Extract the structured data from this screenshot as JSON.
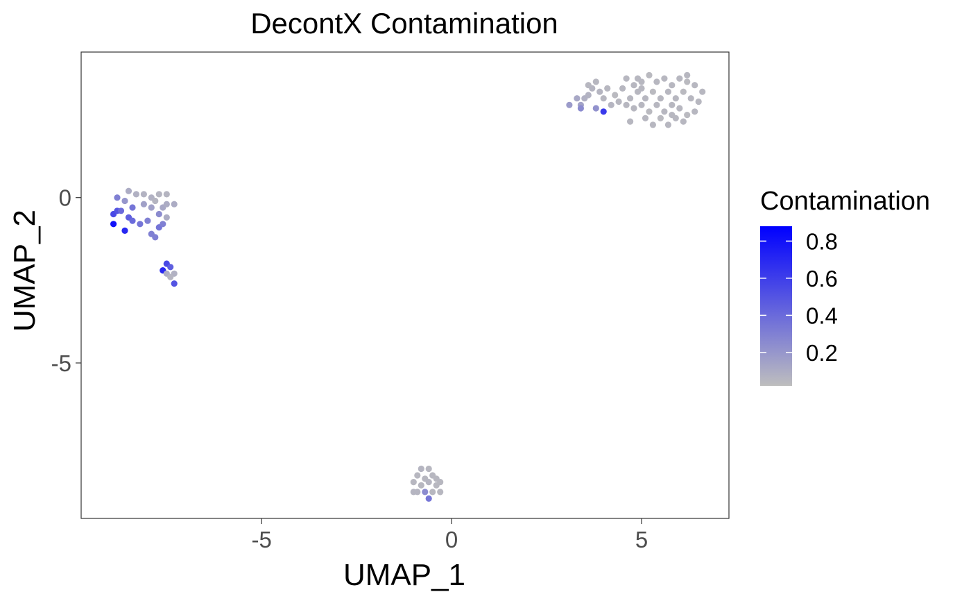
{
  "chart_data": {
    "type": "scatter",
    "title": "DecontX Contamination",
    "xlabel": "UMAP_1",
    "ylabel": "UMAP_2",
    "xlim": [
      -9.75,
      7.3
    ],
    "ylim": [
      -9.7,
      4.4
    ],
    "x_ticks": [
      -5,
      0,
      5
    ],
    "x_tick_labels": [
      "-5",
      "0",
      "5"
    ],
    "y_ticks": [
      0,
      -5
    ],
    "y_tick_labels": [
      "0",
      "-5"
    ],
    "grid": false,
    "legend": {
      "title": "Contamination",
      "placement": "right",
      "type": "colorbar",
      "range": [
        0.02,
        0.88
      ],
      "ticks": [
        0.8,
        0.6,
        0.4,
        0.2
      ],
      "tick_labels": [
        "0.8",
        "0.6",
        "0.4",
        "0.2"
      ],
      "low_color": "#bebebe",
      "high_color": "#0000ff"
    },
    "points": [
      [
        4.6,
        3.6,
        0.05
      ],
      [
        4.8,
        3.4,
        0.05
      ],
      [
        5.0,
        3.5,
        0.05
      ],
      [
        5.2,
        3.7,
        0.04
      ],
      [
        5.4,
        3.5,
        0.05
      ],
      [
        5.6,
        3.6,
        0.05
      ],
      [
        5.8,
        3.4,
        0.05
      ],
      [
        6.0,
        3.6,
        0.05
      ],
      [
        6.2,
        3.5,
        0.04
      ],
      [
        6.4,
        3.4,
        0.05
      ],
      [
        6.6,
        3.2,
        0.05
      ],
      [
        6.3,
        3.0,
        0.05
      ],
      [
        6.1,
        3.2,
        0.04
      ],
      [
        5.9,
        3.0,
        0.05
      ],
      [
        5.7,
        3.2,
        0.05
      ],
      [
        5.5,
        3.0,
        0.05
      ],
      [
        5.3,
        3.2,
        0.04
      ],
      [
        5.1,
        3.0,
        0.05
      ],
      [
        4.9,
        3.2,
        0.05
      ],
      [
        4.7,
        3.0,
        0.05
      ],
      [
        4.5,
        3.3,
        0.05
      ],
      [
        4.3,
        3.1,
        0.04
      ],
      [
        4.4,
        2.9,
        0.05
      ],
      [
        4.6,
        2.8,
        0.05
      ],
      [
        4.8,
        2.7,
        0.05
      ],
      [
        5.0,
        2.8,
        0.05
      ],
      [
        5.2,
        2.6,
        0.04
      ],
      [
        5.4,
        2.8,
        0.05
      ],
      [
        5.6,
        2.6,
        0.05
      ],
      [
        5.8,
        2.5,
        0.05
      ],
      [
        6.0,
        2.7,
        0.05
      ],
      [
        6.2,
        2.5,
        0.04
      ],
      [
        6.4,
        2.6,
        0.05
      ],
      [
        6.1,
        2.3,
        0.05
      ],
      [
        5.9,
        2.4,
        0.05
      ],
      [
        5.7,
        2.2,
        0.05
      ],
      [
        5.5,
        2.4,
        0.04
      ],
      [
        5.3,
        2.2,
        0.05
      ],
      [
        5.1,
        2.4,
        0.05
      ],
      [
        4.7,
        2.3,
        0.05
      ],
      [
        4.1,
        3.3,
        0.05
      ],
      [
        4.0,
        3.0,
        0.05
      ],
      [
        3.9,
        3.2,
        0.06
      ],
      [
        3.8,
        3.5,
        0.05
      ],
      [
        3.7,
        3.3,
        0.06
      ],
      [
        3.6,
        3.1,
        0.07
      ],
      [
        3.6,
        3.4,
        0.05
      ],
      [
        3.5,
        3.0,
        0.08
      ],
      [
        3.4,
        2.8,
        0.14
      ],
      [
        3.3,
        3.0,
        0.12
      ],
      [
        3.1,
        2.8,
        0.18
      ],
      [
        3.4,
        2.7,
        0.25
      ],
      [
        3.8,
        2.7,
        0.22
      ],
      [
        4.0,
        2.6,
        0.62
      ],
      [
        4.2,
        2.8,
        0.06
      ],
      [
        5.0,
        3.3,
        0.05
      ],
      [
        5.8,
        2.8,
        0.05
      ],
      [
        6.5,
        2.9,
        0.05
      ],
      [
        4.9,
        3.6,
        0.05
      ],
      [
        6.2,
        3.7,
        0.05
      ],
      [
        -8.9,
        -0.5,
        0.55
      ],
      [
        -8.9,
        -0.8,
        0.8
      ],
      [
        -8.8,
        -0.4,
        0.5
      ],
      [
        -8.6,
        -1.0,
        0.7
      ],
      [
        -8.7,
        -0.4,
        0.4
      ],
      [
        -8.5,
        -0.6,
        0.45
      ],
      [
        -8.4,
        -0.7,
        0.4
      ],
      [
        -8.2,
        -0.8,
        0.35
      ],
      [
        -8.0,
        -0.7,
        0.3
      ],
      [
        -7.9,
        -1.1,
        0.3
      ],
      [
        -7.8,
        -1.2,
        0.3
      ],
      [
        -7.7,
        -0.9,
        0.35
      ],
      [
        -7.6,
        -0.8,
        0.3
      ],
      [
        -7.5,
        -0.6,
        0.1
      ],
      [
        -8.4,
        -0.3,
        0.35
      ],
      [
        -8.1,
        -0.2,
        0.15
      ],
      [
        -7.9,
        -0.3,
        0.15
      ],
      [
        -7.7,
        -0.5,
        0.25
      ],
      [
        -7.6,
        -0.3,
        0.12
      ],
      [
        -7.5,
        -0.2,
        0.1
      ],
      [
        -7.3,
        -0.2,
        0.1
      ],
      [
        -8.5,
        0.2,
        0.1
      ],
      [
        -8.3,
        0.1,
        0.08
      ],
      [
        -8.1,
        0.1,
        0.07
      ],
      [
        -7.9,
        0.0,
        0.08
      ],
      [
        -7.8,
        -0.1,
        0.06
      ],
      [
        -7.7,
        0.1,
        0.06
      ],
      [
        -7.5,
        0.1,
        0.06
      ],
      [
        -8.8,
        0.0,
        0.3
      ],
      [
        -8.6,
        -0.1,
        0.2
      ],
      [
        -7.5,
        -2.0,
        0.55
      ],
      [
        -7.6,
        -2.2,
        0.7
      ],
      [
        -7.4,
        -2.1,
        0.45
      ],
      [
        -7.5,
        -2.3,
        0.1
      ],
      [
        -7.3,
        -2.3,
        0.08
      ],
      [
        -7.4,
        -2.4,
        0.06
      ],
      [
        -7.3,
        -2.6,
        0.5
      ],
      [
        -0.8,
        -8.2,
        0.06
      ],
      [
        -0.6,
        -8.2,
        0.05
      ],
      [
        -0.9,
        -8.4,
        0.05
      ],
      [
        -0.7,
        -8.5,
        0.05
      ],
      [
        -0.5,
        -8.4,
        0.05
      ],
      [
        -0.4,
        -8.5,
        0.05
      ],
      [
        -1.0,
        -8.6,
        0.05
      ],
      [
        -0.8,
        -8.7,
        0.05
      ],
      [
        -0.6,
        -8.6,
        0.06
      ],
      [
        -0.4,
        -8.7,
        0.05
      ],
      [
        -0.3,
        -8.6,
        0.05
      ],
      [
        -0.9,
        -8.9,
        0.06
      ],
      [
        -0.7,
        -8.9,
        0.25
      ],
      [
        -0.5,
        -8.9,
        0.05
      ],
      [
        -0.3,
        -8.9,
        0.05
      ],
      [
        -1.0,
        -8.9,
        0.06
      ],
      [
        -0.6,
        -9.1,
        0.35
      ]
    ]
  }
}
